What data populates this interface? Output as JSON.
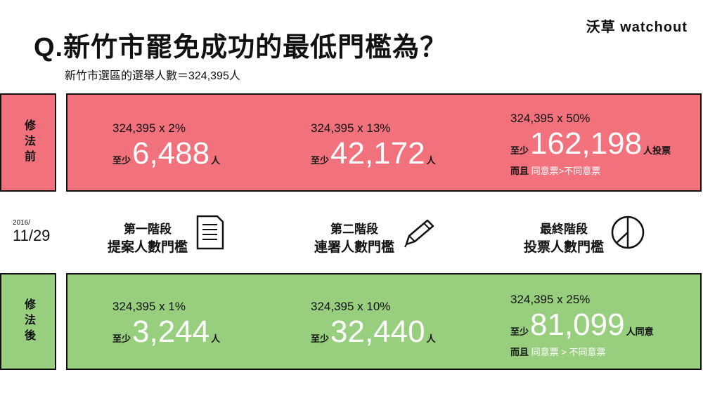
{
  "colors": {
    "before": "#f1717c",
    "after": "#97cf7e"
  },
  "logo": "沃草 watchout",
  "title": "Q.新竹市罷免成功的最低門檻為？",
  "subtitle": "新竹市選區的選舉人數＝324,395人",
  "before": {
    "label": "修法前",
    "cells": [
      {
        "formula": "324,395 x 2%",
        "prefix": "至少",
        "value": "6,488",
        "suffix": "人"
      },
      {
        "formula": "324,395 x 13%",
        "prefix": "至少",
        "value": "42,172",
        "suffix": "人"
      },
      {
        "formula": "324,395 x 50%",
        "prefix": "至少",
        "value": "162,198",
        "suffix": "人投票",
        "note_prefix": "而且",
        "note_rest": "同意票>不同意票"
      }
    ]
  },
  "date": {
    "year": "2016/",
    "day": "11/29"
  },
  "stages": [
    {
      "name": "第一階段",
      "threshold": "提案人數門檻",
      "icon": "document-icon"
    },
    {
      "name": "第二階段",
      "threshold": "連署人數門檻",
      "icon": "pencil-icon"
    },
    {
      "name": "最終階段",
      "threshold": "投票人數門檻",
      "icon": "pie-chart-icon"
    }
  ],
  "after": {
    "label": "修法後",
    "cells": [
      {
        "formula": "324,395 x 1%",
        "prefix": "至少",
        "value": "3,244",
        "suffix": "人"
      },
      {
        "formula": "324,395 x 10%",
        "prefix": "至少",
        "value": "32,440",
        "suffix": "人"
      },
      {
        "formula": "324,395 x 25%",
        "prefix": "至少",
        "value": "81,099",
        "suffix": "人同意",
        "note_prefix": "而且",
        "note_rest": "同意票 > 不同意票"
      }
    ]
  }
}
